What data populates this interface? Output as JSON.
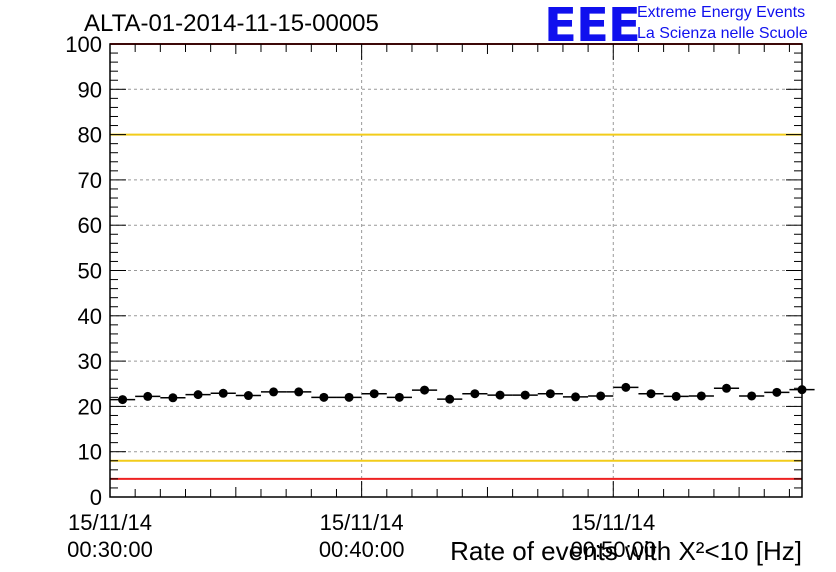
{
  "chart_data": {
    "type": "scatter",
    "title": "ALTA-01-2014-11-15-00005",
    "xlabel": "Rate of events with X²<10 [Hz]",
    "ylabel": "",
    "ylim": [
      0,
      100
    ],
    "yticks": [
      0,
      10,
      20,
      30,
      40,
      50,
      60,
      70,
      80,
      90,
      100
    ],
    "x_range_minutes": [
      0,
      27.5
    ],
    "xtick_labels": [
      {
        "date": "15/11/14",
        "time": "00:30:00",
        "minute": 0
      },
      {
        "date": "15/11/14",
        "time": "00:40:00",
        "minute": 10
      },
      {
        "date": "15/11/14",
        "time": "00:50:00",
        "minute": 20
      }
    ],
    "x_time_start": "15/11/14 00:30:00",
    "bin_minutes": 1,
    "values": [
      21.5,
      22.2,
      21.9,
      22.6,
      22.9,
      22.4,
      23.2,
      23.2,
      22.0,
      22.0,
      22.8,
      22.0,
      23.6,
      21.6,
      22.8,
      22.5,
      22.5,
      22.8,
      22.1,
      22.3,
      24.2,
      22.8,
      22.2,
      22.3,
      24.0,
      22.3,
      23.1,
      23.7
    ],
    "reference_lines": [
      {
        "value": 100,
        "color": "#ee2222"
      },
      {
        "value": 80,
        "color": "#f2cc1a"
      },
      {
        "value": 8,
        "color": "#f2cc1a"
      },
      {
        "value": 4,
        "color": "#ee2222"
      }
    ],
    "grid": true,
    "marker_color": "#000000"
  },
  "logo": {
    "text": "EEE",
    "line1": "Extreme Energy Events",
    "line2": "La Scienza nelle Scuole",
    "color": "#1010ee"
  }
}
